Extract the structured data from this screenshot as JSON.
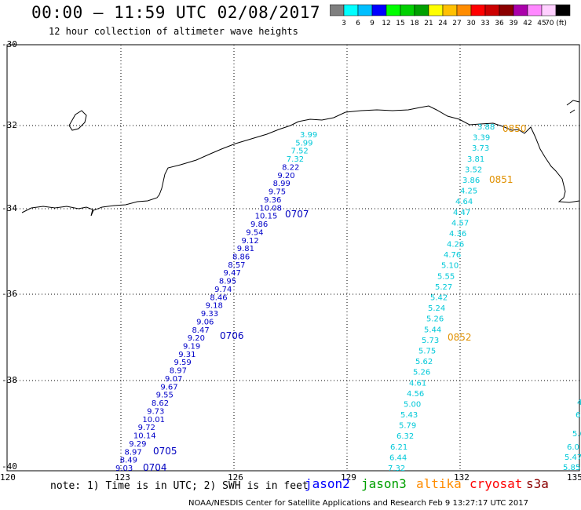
{
  "header": {
    "title": "00:00 – 11:59 UTC 02/08/2017",
    "subtitle": "12 hour collection of altimeter wave heights"
  },
  "colorbar": {
    "colors": [
      "#7f7f7f",
      "#00ffff",
      "#00bfff",
      "#0000ff",
      "#00ff00",
      "#00d000",
      "#00a000",
      "#ffff00",
      "#ffc000",
      "#ff8c00",
      "#ff0000",
      "#cc0000",
      "#8b0000",
      "#aa00aa",
      "#ff88ff",
      "#ffd0ff",
      "#000000"
    ],
    "labels": [
      "3",
      "6",
      "9",
      "12",
      "15",
      "18",
      "21",
      "24",
      "27",
      "30",
      "33",
      "36",
      "39",
      "42",
      "45",
      "70 (ft)"
    ]
  },
  "axes": {
    "lat_labels": [
      "-30",
      "-32",
      "-34",
      "-36",
      "-38",
      "-40"
    ],
    "lon_labels": [
      "120",
      "123",
      "126",
      "129",
      "132",
      "135"
    ]
  },
  "tracks": {
    "jason2": {
      "color": "#0000c0",
      "values": [
        "9.03",
        "8.49",
        "8.97",
        "9.29",
        "10.14",
        "9.72",
        "10.01",
        "9.73",
        "8.62",
        "9.55",
        "9.67",
        "9.07",
        "8.97",
        "9.59",
        "9.31",
        "9.19",
        "9.20",
        "8.47",
        "9.06",
        "9.33",
        "9.18",
        "8.46",
        "9.74",
        "8.95",
        "9.47",
        "8.57",
        "8.86",
        "9.81",
        "9.12",
        "9.54",
        "9.86",
        "10.15",
        "10.08",
        "9.36",
        "9.75",
        "8.99",
        "9.20",
        "8.22",
        "7.32",
        "7.52",
        "5.99",
        "3.99"
      ],
      "time_labels": [
        "0704",
        "0705",
        "0706",
        "0707"
      ]
    },
    "altika": {
      "color": "#e09000",
      "values": [
        "7.32",
        "6.44",
        "6.21",
        "6.32",
        "5.79",
        "5.43",
        "5.00",
        "4.56",
        "4.61",
        "5.26",
        "5.62",
        "5.75",
        "5.73",
        "5.44",
        "5.26",
        "5.24",
        "5.42",
        "5.27",
        "5.55",
        "5.10",
        "4.76",
        "4.26",
        "4.36",
        "4.57",
        "4.47",
        "4.64",
        "4.25",
        "3.86",
        "3.52",
        "3.81",
        "3.73",
        "3.39",
        "3.88"
      ],
      "time_labels": [
        "0850",
        "0851",
        "0852"
      ]
    },
    "edge": {
      "values": [
        "4",
        "6",
        "5.6",
        "6.0",
        "5.47",
        "5.85"
      ]
    }
  },
  "legend": {
    "note": "note: 1) Time is in UTC; 2) SWH is in feet",
    "items": [
      {
        "label": "jason2",
        "color": "#0000ff"
      },
      {
        "label": "jason3",
        "color": "#00a000"
      },
      {
        "label": "altika",
        "color": "#ff8c00"
      },
      {
        "label": "cryosat",
        "color": "#ff0000"
      },
      {
        "label": "s3a",
        "color": "#8b0000"
      }
    ]
  },
  "footer": {
    "credit": "NOAA/NESDIS Center for Satellite Applications and Research   Feb  9 13:27:17 UTC 2017"
  }
}
